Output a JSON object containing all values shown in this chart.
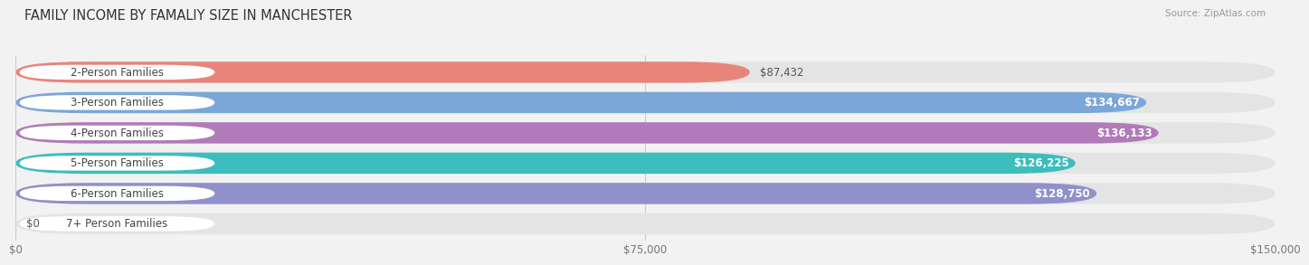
{
  "title": "FAMILY INCOME BY FAMALIY SIZE IN MANCHESTER",
  "source": "Source: ZipAtlas.com",
  "categories": [
    "2-Person Families",
    "3-Person Families",
    "4-Person Families",
    "5-Person Families",
    "6-Person Families",
    "7+ Person Families"
  ],
  "values": [
    87432,
    134667,
    136133,
    126225,
    128750,
    0
  ],
  "bar_colors": [
    "#E8857A",
    "#7BA7D8",
    "#B07BB8",
    "#3DBDBC",
    "#9090CC",
    "#F0A0B8"
  ],
  "value_labels": [
    "$87,432",
    "$134,667",
    "$136,133",
    "$126,225",
    "$128,750",
    "$0"
  ],
  "value_label_inside": [
    false,
    true,
    true,
    true,
    true,
    false
  ],
  "xmax": 150000,
  "xticks": [
    0,
    75000,
    150000
  ],
  "xticklabels": [
    "$0",
    "$75,000",
    "$150,000"
  ],
  "bg_color": "#f2f2f2",
  "bar_bg_color": "#e4e4e4",
  "title_fontsize": 10.5,
  "label_fontsize": 8.5,
  "value_fontsize": 8.5
}
